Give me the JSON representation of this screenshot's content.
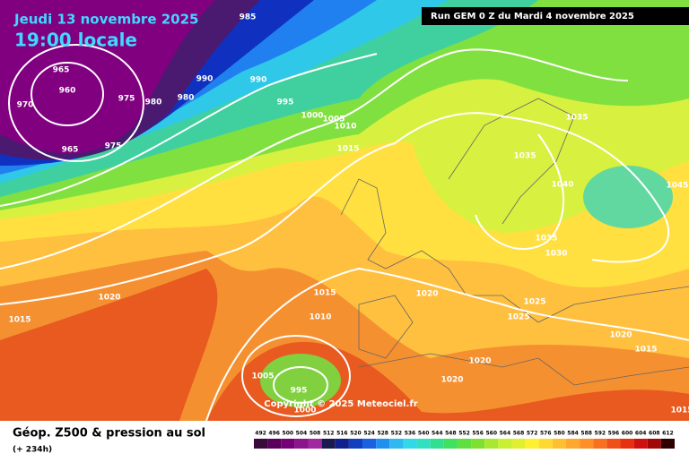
{
  "header": {
    "date": "Jeudi 13 novembre 2025",
    "time": "19:00 locale",
    "run": "Run GEM 0 Z du Mardi 4 novembre 2025"
  },
  "map": {
    "isobar_labels": [
      985,
      965,
      960,
      970,
      975,
      980,
      980,
      965,
      975,
      990,
      990,
      995,
      1000,
      1005,
      1010,
      1015,
      1035,
      1035,
      1040,
      1045,
      1035,
      1030,
      1020,
      1015,
      1015,
      1020,
      1025,
      1025,
      1010,
      1020,
      1015,
      1020,
      1005,
      995,
      1020,
      1000,
      1015
    ],
    "copyright": "Copyright © 2025 Meteociel.fr"
  },
  "footer": {
    "title": "Géop. Z500 & pression au sol",
    "lead": "(+ 234h)"
  },
  "legend": {
    "values": [
      492,
      496,
      500,
      504,
      508,
      512,
      516,
      520,
      524,
      528,
      532,
      536,
      540,
      544,
      548,
      552,
      556,
      560,
      564,
      568,
      572,
      576,
      580,
      584,
      588,
      592,
      596,
      600,
      604,
      608,
      612
    ],
    "colors": [
      "#3a0a3a",
      "#5a005a",
      "#760076",
      "#8c148c",
      "#a028a0",
      "#1a1a50",
      "#10208c",
      "#1040c0",
      "#1a60e0",
      "#2090f0",
      "#30b8f0",
      "#30d8e8",
      "#30e0c0",
      "#30e090",
      "#40e060",
      "#60e040",
      "#80e030",
      "#a8e830",
      "#c8f030",
      "#e0f030",
      "#fff030",
      "#ffd830",
      "#ffc030",
      "#ffa830",
      "#ff9028",
      "#f87020",
      "#f05018",
      "#e83010",
      "#d01010",
      "#a00808",
      "#300000"
    ]
  }
}
